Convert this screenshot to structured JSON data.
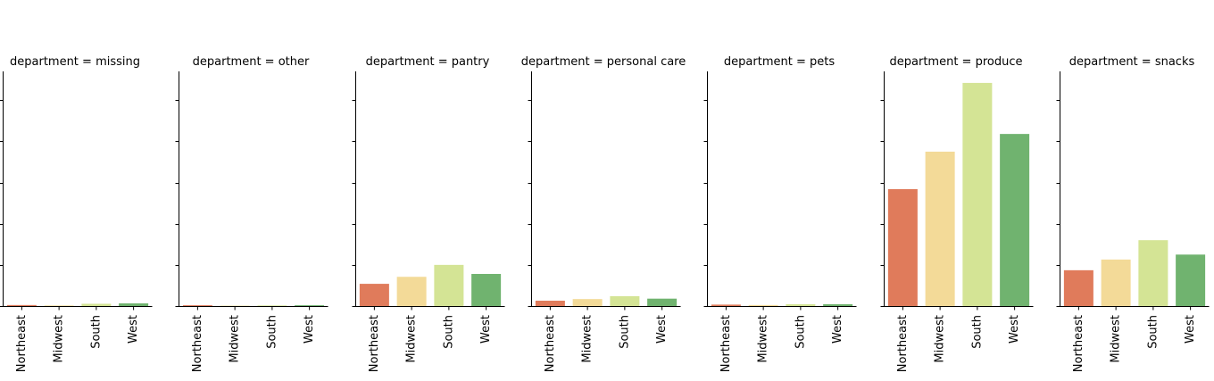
{
  "chart_data": {
    "type": "bar",
    "facet_label": "department",
    "categories": [
      "Northeast",
      "Midwest",
      "South",
      "West"
    ],
    "colors": [
      "#e07b5b",
      "#f3da98",
      "#d4e495",
      "#70b36f"
    ],
    "ylim": [
      0,
      57000
    ],
    "yticks": [
      0,
      10000,
      20000,
      30000,
      40000,
      50000
    ],
    "panels": [
      {
        "title": "department = missing",
        "values": [
          250,
          150,
          550,
          650
        ]
      },
      {
        "title": "department = other",
        "values": [
          200,
          100,
          150,
          200
        ]
      },
      {
        "title": "department = pantry",
        "values": [
          5400,
          7100,
          10000,
          7800
        ]
      },
      {
        "title": "department = personal care",
        "values": [
          1300,
          1700,
          2400,
          1800
        ]
      },
      {
        "title": "department = pets",
        "values": [
          350,
          250,
          450,
          450
        ]
      },
      {
        "title": "department = produce",
        "values": [
          28400,
          37500,
          54200,
          41800
        ]
      },
      {
        "title": "department = snacks",
        "values": [
          8700,
          11300,
          16000,
          12500
        ]
      }
    ]
  }
}
